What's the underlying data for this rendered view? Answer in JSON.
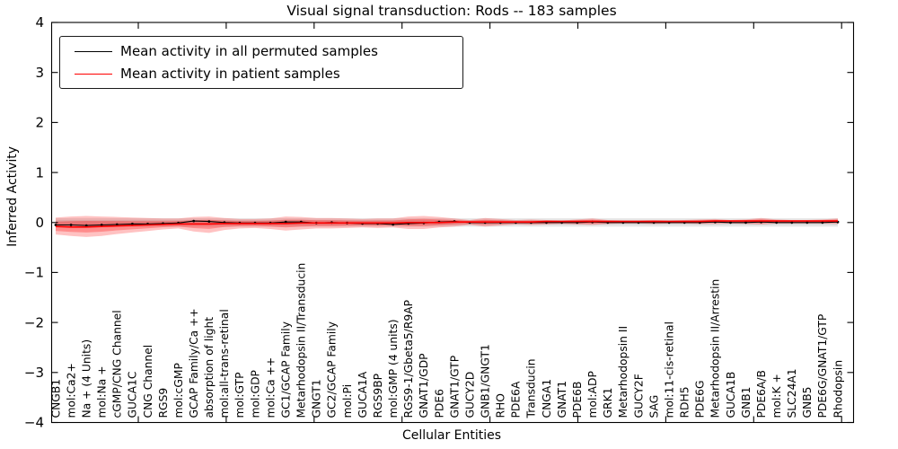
{
  "title": "Visual signal transduction: Rods -- 183 samples",
  "legend": {
    "items": [
      {
        "label": "Mean activity in all permuted samples",
        "color": "#000000"
      },
      {
        "label": "Mean activity in patient samples",
        "color": "#ff0000"
      }
    ]
  },
  "chart_data": {
    "type": "line",
    "title": "Visual signal transduction: Rods -- 183 samples",
    "xlabel": "Cellular Entities",
    "ylabel": "Inferred Activity",
    "ylim": [
      -4,
      4
    ],
    "ytick_values": [
      4,
      3,
      2,
      1,
      0,
      -1,
      -2,
      -3,
      -4
    ],
    "ytick_labels": [
      "4",
      "3",
      "2",
      "1",
      "0",
      "−1",
      "−2",
      "−3",
      "−4"
    ],
    "grid": false,
    "legend_position": "upper left",
    "categories": [
      "CNGB1",
      "mol:Ca2+",
      "Na + (4 Units)",
      "mol:Na +",
      "cGMP/CNG Channel",
      "GUCA1C",
      "CNG Channel",
      "RGS9",
      "mol:cGMP",
      "GCAP Family/Ca ++",
      "absorption of light",
      "mol:all-trans-retinal",
      "mol:GTP",
      "mol:GDP",
      "mol:Ca ++",
      "GC1/GCAP Family",
      "Metarhodopsin II/Transducin",
      "GNGT1",
      "GC2/GCAP Family",
      "mol:Pi",
      "GUCA1A",
      "RGS9BP",
      "mol:GMP (4 units)",
      "RGS9-1/Gbeta5/R9AP",
      "GNAT1/GDP",
      "PDE6",
      "GNAT1/GTP",
      "GUCY2D",
      "GNB1/GNGT1",
      "RHO",
      "PDE6A",
      "Transducin",
      "CNGA1",
      "GNAT1",
      "PDE6B",
      "mol:ADP",
      "GRK1",
      "Metarhodopsin II",
      "GUCY2F",
      "SAG",
      "mol:11-cis-retinal",
      "RDH5",
      "PDE6G",
      "Metarhodopsin II/Arrestin",
      "GUCA1B",
      "GNB1",
      "PDE6A/B",
      "mol:K +",
      "SLC24A1",
      "GNB5",
      "PDE6G/GNAT1/GTP",
      "Rhodopsin"
    ],
    "series": [
      {
        "name": "Mean activity in all permuted samples",
        "color": "#000000",
        "values": [
          -0.05,
          -0.05,
          -0.06,
          -0.05,
          -0.04,
          -0.03,
          -0.03,
          -0.02,
          -0.01,
          0.03,
          0.02,
          0.0,
          -0.01,
          -0.01,
          -0.01,
          0.01,
          0.01,
          -0.01,
          0.0,
          -0.01,
          -0.02,
          -0.02,
          -0.04,
          -0.02,
          -0.01,
          0.01,
          0.02,
          0.0,
          0.0,
          0.0,
          0.0,
          0.0,
          0.0,
          0.0,
          0.0,
          0.01,
          0.0,
          0.0,
          0.0,
          0.0,
          0.0,
          0.0,
          0.0,
          0.01,
          0.0,
          0.0,
          0.01,
          0.0,
          0.0,
          0.0,
          0.0,
          0.01
        ]
      },
      {
        "name": "Mean activity in patient samples",
        "color": "#ff0000",
        "values": [
          -0.08,
          -0.09,
          -0.09,
          -0.08,
          -0.07,
          -0.06,
          -0.05,
          -0.04,
          -0.03,
          -0.03,
          -0.03,
          -0.02,
          -0.02,
          -0.02,
          -0.02,
          -0.02,
          -0.01,
          -0.01,
          -0.01,
          -0.01,
          -0.01,
          -0.01,
          -0.01,
          0.0,
          0.0,
          0.0,
          0.01,
          0.01,
          0.01,
          0.01,
          0.01,
          0.01,
          0.02,
          0.02,
          0.02,
          0.02,
          0.02,
          0.02,
          0.02,
          0.02,
          0.02,
          0.02,
          0.02,
          0.03,
          0.03,
          0.03,
          0.03,
          0.03,
          0.03,
          0.03,
          0.03,
          0.03
        ]
      }
    ],
    "bands": [
      {
        "name": "patient samples range",
        "color": "#ff0000",
        "upper": [
          0.1,
          0.12,
          0.13,
          0.12,
          0.11,
          0.1,
          0.09,
          0.08,
          0.08,
          0.11,
          0.12,
          0.09,
          0.07,
          0.07,
          0.08,
          0.12,
          0.11,
          0.09,
          0.09,
          0.08,
          0.07,
          0.08,
          0.08,
          0.12,
          0.13,
          0.11,
          0.08,
          0.05,
          0.09,
          0.07,
          0.05,
          0.06,
          0.05,
          0.04,
          0.06,
          0.08,
          0.05,
          0.04,
          0.04,
          0.05,
          0.04,
          0.05,
          0.06,
          0.07,
          0.05,
          0.06,
          0.09,
          0.06,
          0.05,
          0.05,
          0.06,
          0.08
        ],
        "lower": [
          -0.24,
          -0.27,
          -0.29,
          -0.27,
          -0.23,
          -0.2,
          -0.17,
          -0.14,
          -0.12,
          -0.18,
          -0.21,
          -0.15,
          -0.12,
          -0.11,
          -0.13,
          -0.16,
          -0.14,
          -0.12,
          -0.12,
          -0.11,
          -0.1,
          -0.11,
          -0.1,
          -0.13,
          -0.13,
          -0.1,
          -0.08,
          -0.05,
          -0.08,
          -0.06,
          -0.04,
          -0.05,
          -0.04,
          -0.03,
          -0.04,
          -0.05,
          -0.03,
          -0.02,
          -0.02,
          -0.03,
          -0.02,
          -0.02,
          -0.03,
          -0.03,
          -0.02,
          -0.03,
          -0.04,
          -0.02,
          -0.02,
          -0.02,
          -0.02,
          -0.03
        ]
      },
      {
        "name": "permuted samples range",
        "color": "#bbbbbb",
        "upper_const": 0.085,
        "lower_const": -0.085
      }
    ]
  }
}
